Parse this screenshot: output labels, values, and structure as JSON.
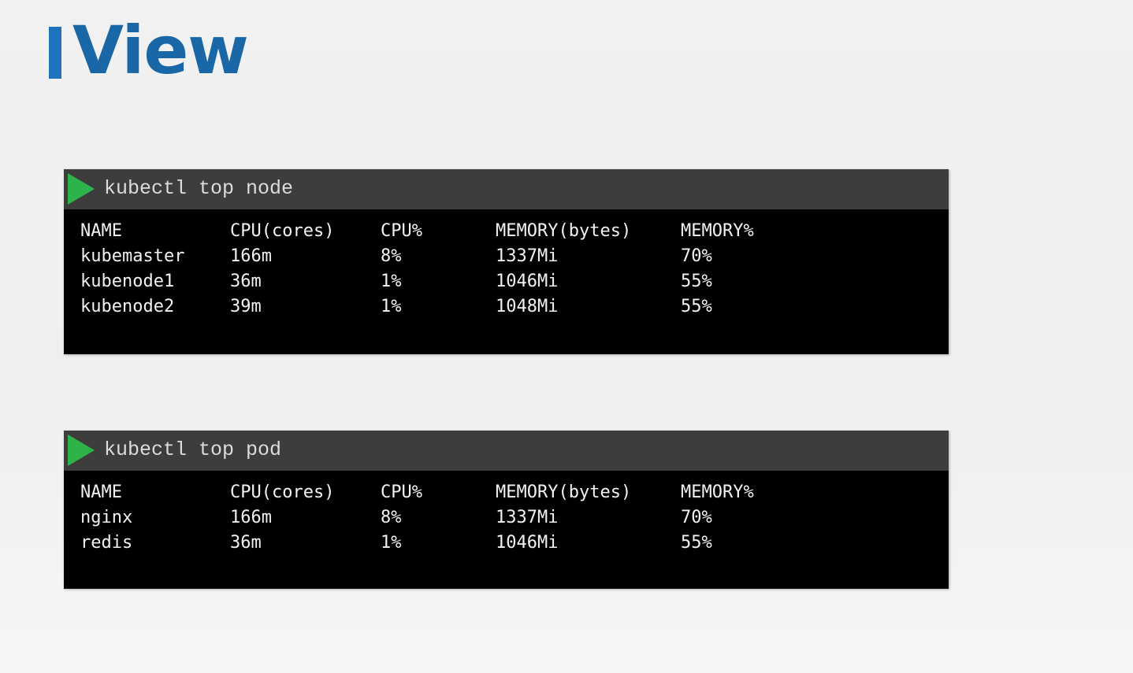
{
  "slide": {
    "title": "View",
    "accent_color": "#1e73be"
  },
  "terminals": [
    {
      "command": "kubectl top node",
      "headers": [
        "NAME",
        "CPU(cores)",
        "CPU%",
        "MEMORY(bytes)",
        "MEMORY%"
      ],
      "rows": [
        [
          "kubemaster",
          "166m",
          "8%",
          "1337Mi",
          "70%"
        ],
        [
          "kubenode1",
          "36m",
          "1%",
          "1046Mi",
          "55%"
        ],
        [
          "kubenode2",
          "39m",
          "1%",
          "1048Mi",
          "55%"
        ]
      ]
    },
    {
      "command": "kubectl top pod",
      "headers": [
        "NAME",
        "CPU(cores)",
        "CPU%",
        "MEMORY(bytes)",
        "MEMORY%"
      ],
      "rows": [
        [
          "nginx",
          "166m",
          "8%",
          "1337Mi",
          "70%"
        ],
        [
          "redis",
          "36m",
          "1%",
          "1046Mi",
          "55%"
        ]
      ]
    }
  ]
}
